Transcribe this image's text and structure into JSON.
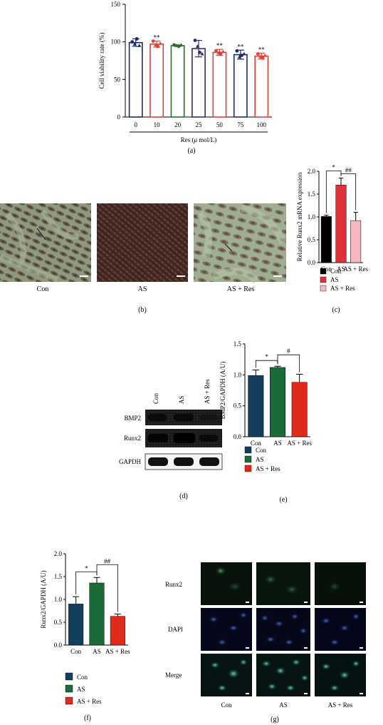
{
  "chart_data": [
    {
      "id": "a",
      "type": "bar",
      "panel_label": "(a)",
      "ylabel": "Cell viability rate (%)",
      "xlabel": "Res (μ mol/L)",
      "xlabel_pre": "Res (",
      "xlabel_mu": "μ",
      "xlabel_post": " mol/L)",
      "yticks": [
        "0",
        "50",
        "100",
        "150"
      ],
      "ylim": [
        0,
        150
      ],
      "categories": [
        "0",
        "10",
        "20",
        "25",
        "50",
        "75",
        "100"
      ],
      "values": [
        99,
        97,
        95,
        91,
        86,
        83,
        81
      ],
      "errors": [
        5,
        4,
        1,
        11,
        4,
        6,
        4
      ],
      "significance": [
        "",
        "**",
        "",
        "",
        "**",
        "**",
        "**"
      ],
      "colors": [
        "#1c2a6b",
        "#e0413a",
        "#2e6b2e",
        "#3b2a6b",
        "#e0413a",
        "#1c2a6b",
        "#e0413a"
      ],
      "points": [
        [
          100,
          97,
          104,
          95
        ],
        [
          101,
          96,
          94,
          98
        ],
        [
          96,
          95,
          94,
          96
        ],
        [
          102,
          94,
          86,
          84
        ],
        [
          88,
          85,
          84,
          87
        ],
        [
          88,
          80,
          82,
          84
        ],
        [
          84,
          80,
          79,
          82
        ]
      ]
    },
    {
      "id": "c",
      "type": "bar",
      "panel_label": "(c)",
      "ylabel": "Relative Runx2 mRNA expression",
      "yticks": [
        "0.0",
        "0.5",
        "1.0",
        "1.5",
        "2.0"
      ],
      "ylim": [
        0,
        2.0
      ],
      "categories": [
        "Con",
        "AS",
        "AS + Res"
      ],
      "values": [
        1.01,
        1.7,
        0.92
      ],
      "errors": [
        0.03,
        0.15,
        0.18
      ],
      "colors": [
        "#000000",
        "#e0313a",
        "#f4b8c0"
      ],
      "sig_left": "*",
      "sig_right": "##",
      "legend": [
        "Con",
        "AS",
        "AS + Res"
      ]
    },
    {
      "id": "e",
      "type": "bar",
      "panel_label": "(e)",
      "ylabel": "BMP2/GAPDH (A/U)",
      "yticks": [
        "0.0",
        "0.5",
        "1.0",
        "1.5"
      ],
      "ylim": [
        0,
        1.5
      ],
      "categories": [
        "Con",
        "AS",
        "AS + Res"
      ],
      "values": [
        0.99,
        1.12,
        0.88
      ],
      "errors": [
        0.09,
        0.02,
        0.13
      ],
      "colors": [
        "#123f5e",
        "#1b6b3a",
        "#e02b1b"
      ],
      "sig_left": "*",
      "sig_right": "#",
      "legend": [
        "Con",
        "AS",
        "AS + Res"
      ]
    },
    {
      "id": "f",
      "type": "bar",
      "panel_label": "(f)",
      "ylabel": "Runx2/GAPDH (A/U)",
      "yticks": [
        "0.0",
        "0.5",
        "1.0",
        "1.5",
        "2.0"
      ],
      "ylim": [
        0,
        2.0
      ],
      "categories": [
        "Con",
        "AS",
        "AS + Res"
      ],
      "values": [
        0.9,
        1.36,
        0.63
      ],
      "errors": [
        0.16,
        0.12,
        0.05
      ],
      "colors": [
        "#123f5e",
        "#1b6b3a",
        "#e02b1b"
      ],
      "sig_left": "*",
      "sig_right": "##",
      "legend": [
        "Con",
        "AS",
        "AS + Res"
      ]
    }
  ],
  "panel_b": {
    "panel_label": "(b)",
    "captions": [
      "Con",
      "AS",
      "AS + Res"
    ]
  },
  "panel_d": {
    "panel_label": "(d)",
    "lanes": [
      "Con",
      "AS",
      "AS + Res"
    ],
    "rows": [
      "BMP2",
      "Runx2",
      "GAPDH"
    ]
  },
  "panel_g": {
    "panel_label": "(g)",
    "rows": [
      "Runx2",
      "DAPI",
      "Merge"
    ],
    "columns": [
      "Con",
      "AS",
      "AS + Res"
    ]
  }
}
